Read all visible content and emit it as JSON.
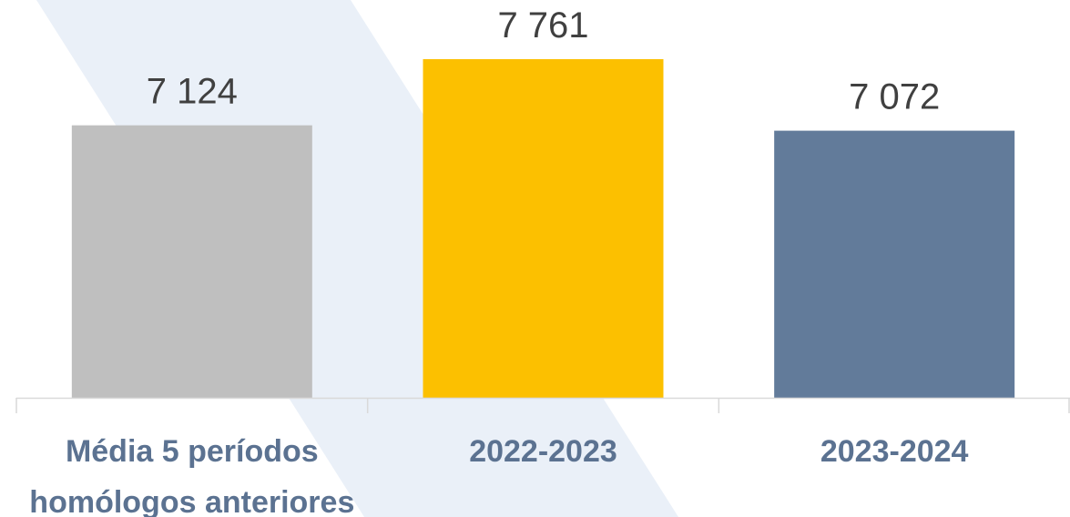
{
  "chart_data": {
    "type": "bar",
    "categories": [
      [
        "Média 5 períodos",
        "homólogos anteriores"
      ],
      [
        "2022-2023"
      ],
      [
        "2023-2024"
      ]
    ],
    "values": [
      7124,
      7761,
      7072
    ],
    "value_labels": [
      "7 124",
      "7 761",
      "7 072"
    ],
    "bar_colors": [
      "#bfbfbf",
      "#fcc000",
      "#627b9a"
    ],
    "label_color": "#5b7291",
    "value_label_color": "#404040",
    "background_band_color": "#eaf0f8",
    "axis_color": "#d9d9d9",
    "ylim": [
      4500,
      8000
    ],
    "grid": false,
    "legend": "none"
  }
}
